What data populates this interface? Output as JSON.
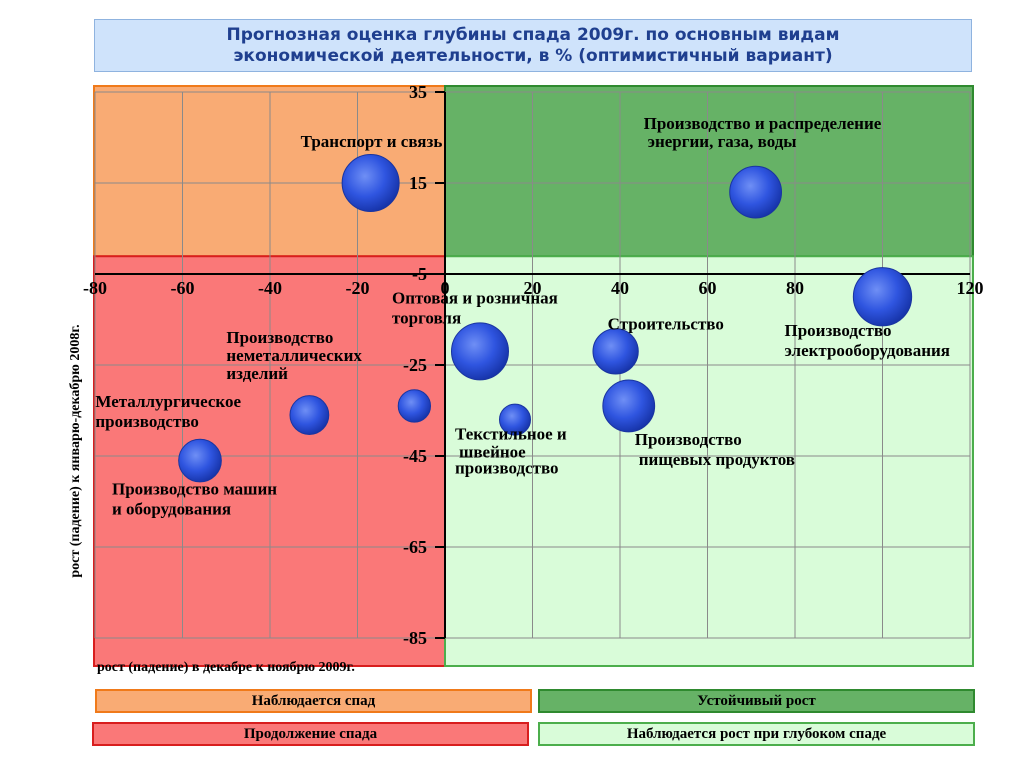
{
  "title": {
    "line1": "Прогнозная оценка глубины спада 2009г. по основным видам",
    "line2": "экономической деятельности, в % (оптимистичный вариант)"
  },
  "legend": {
    "decline": "Наблюдается спад",
    "stable_growth": "Устойчивый рост",
    "continued_decline": "Продолжение спада",
    "growth_after_deep_decline": "Наблюдается рост при глубоком спаде"
  },
  "colors": {
    "decline": "#f9ab74",
    "stable_growth": "#66b266",
    "continued_decline": "#fa7878",
    "growth_after_deep_decline": "#d9fcd9",
    "bubble": "#2a4fd8"
  },
  "chart_data": {
    "type": "scatter",
    "xlabel": "рост (падение) в декабре к ноябрю 2009г.",
    "ylabel": "рост (падение) к январю-декабрю 2008г.",
    "xlim": [
      -80,
      120
    ],
    "ylim": [
      -85,
      35
    ],
    "xticks": [
      "-80",
      "-60",
      "-40",
      "-20",
      "0",
      "20",
      "40",
      "60",
      "80",
      "100",
      "120"
    ],
    "yticks": [
      "35",
      "15",
      "-5",
      "-25",
      "-45",
      "-65",
      "-85"
    ],
    "grid": true,
    "points": [
      {
        "label_lines": [
          "Транспорт и связь"
        ],
        "x": -17,
        "y": 15,
        "size": 3
      },
      {
        "label_lines": [
          "Производство и распределение",
          "энергии, газа, воды"
        ],
        "x": 71,
        "y": 13,
        "size": 2.6
      },
      {
        "label_lines": [
          "Производство",
          "электрооборудования"
        ],
        "x": 100,
        "y": -10,
        "size": 3.1
      },
      {
        "label_lines": [
          "Оптовая и розничная",
          "торговля"
        ],
        "x": 8,
        "y": -22,
        "size": 3
      },
      {
        "label_lines": [
          "Строительство"
        ],
        "x": 39,
        "y": -22,
        "size": 2.1
      },
      {
        "label_lines": [
          "Производство",
          "неметаллических",
          "изделий"
        ],
        "x": -7,
        "y": -34,
        "size": 1.1
      },
      {
        "label_lines": [
          "Металлургическое",
          "производство"
        ],
        "x": -31,
        "y": -36,
        "size": 1.6
      },
      {
        "label_lines": [
          "Текстильное и",
          "швейное",
          "производство"
        ],
        "x": 16,
        "y": -37,
        "size": 1
      },
      {
        "label_lines": [
          "Производство",
          "пищевых продуктов"
        ],
        "x": 42,
        "y": -34,
        "size": 2.6
      },
      {
        "label_lines": [
          "Производство машин",
          "и оборудования"
        ],
        "x": -56,
        "y": -46,
        "size": 1.9
      }
    ]
  }
}
